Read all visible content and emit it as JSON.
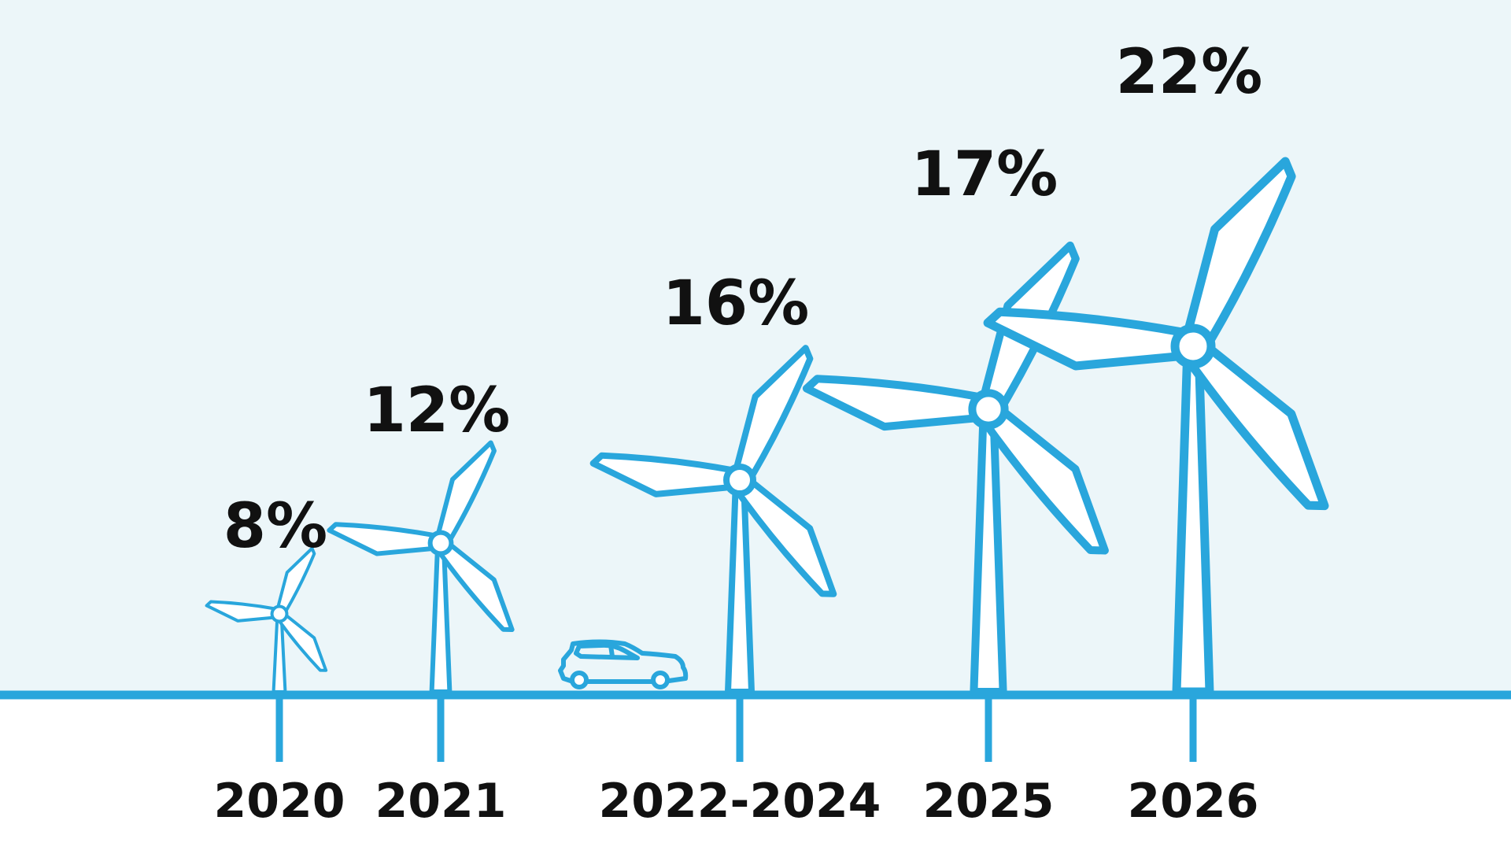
{
  "chart_data": {
    "type": "bar",
    "categories": [
      "2020",
      "2021",
      "2022-2024",
      "2025",
      "2026"
    ],
    "values": [
      8,
      12,
      16,
      17,
      22
    ],
    "value_labels": [
      "8%",
      "12%",
      "16%",
      "17%",
      "22%"
    ],
    "unit": "%",
    "title": "",
    "xlabel": "",
    "ylabel": "",
    "legend": "none",
    "grid": false
  },
  "colors": {
    "accent": "#29a6dc",
    "sky": "#ecf6f9",
    "ground": "#ffffff",
    "text": "#111111"
  },
  "icons": {
    "bar_mark": "wind-turbine-icon",
    "decoration": "car-icon"
  }
}
